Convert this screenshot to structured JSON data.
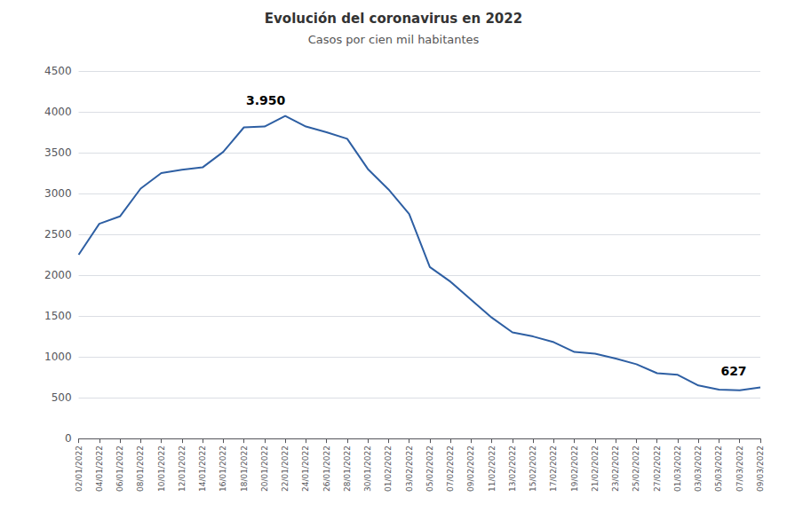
{
  "chart_data": {
    "type": "line",
    "title": "Evolución del coronavirus en 2022",
    "subtitle": "Casos por cien mil habitantes",
    "categories": [
      "02/01/2022",
      "04/01/2022",
      "06/01/2022",
      "08/01/2022",
      "10/01/2022",
      "12/01/2022",
      "14/01/2022",
      "16/01/2022",
      "18/01/2022",
      "20/01/2022",
      "22/01/2022",
      "24/01/2022",
      "26/01/2022",
      "28/01/2022",
      "30/01/2022",
      "01/02/2022",
      "03/02/2022",
      "05/02/2022",
      "07/02/2022",
      "09/02/2022",
      "11/02/2022",
      "13/02/2022",
      "15/02/2022",
      "17/02/2022",
      "19/02/2022",
      "21/02/2022",
      "23/02/2022",
      "25/02/2022",
      "27/02/2022",
      "01/03/2022",
      "03/03/2022",
      "05/03/2022",
      "07/03/2022",
      "09/03/2022"
    ],
    "values": [
      2250,
      2630,
      2720,
      3060,
      3250,
      3290,
      3320,
      3510,
      3810,
      3820,
      3950,
      3820,
      3750,
      3670,
      3300,
      3050,
      2750,
      2100,
      1920,
      1700,
      1480,
      1300,
      1250,
      1180,
      1060,
      1040,
      980,
      910,
      800,
      780,
      650,
      600,
      590,
      627
    ],
    "color": "#2e5fa3",
    "ylim": [
      0,
      4500
    ],
    "yticks": [
      0,
      500,
      1000,
      1500,
      2000,
      2500,
      3000,
      3500,
      4000,
      4500
    ],
    "grid": true,
    "annotations": [
      {
        "label": "3.950",
        "x": "22/01/2022",
        "y": 3950
      },
      {
        "label": "627",
        "x": "09/03/2022",
        "y": 627
      }
    ]
  }
}
